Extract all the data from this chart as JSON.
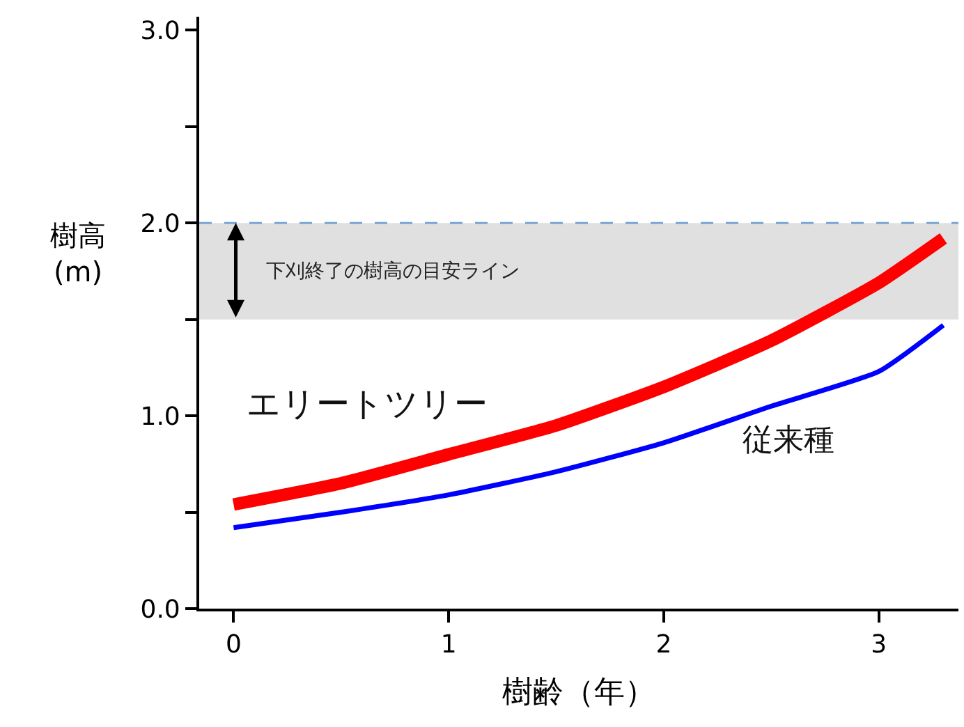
{
  "chart_data": {
    "type": "line",
    "xlabel": "樹齢（年）",
    "ylabel": "樹高\n(m)",
    "x": [
      0,
      0.5,
      1,
      1.5,
      2,
      2.5,
      3,
      3.3
    ],
    "series": [
      {
        "name": "エリートツリー",
        "color": "#ff0000",
        "values": [
          0.54,
          0.65,
          0.8,
          0.95,
          1.15,
          1.39,
          1.69,
          1.92
        ]
      },
      {
        "name": "従来種",
        "color": "#0000ff",
        "values": [
          0.42,
          0.5,
          0.59,
          0.71,
          0.86,
          1.05,
          1.23,
          1.47
        ]
      }
    ],
    "xlim": [
      -0.16,
      3.37
    ],
    "xticks": [
      0,
      1,
      2,
      3
    ],
    "ylim": [
      0,
      3.07
    ],
    "yticks": [
      {
        "value": 0,
        "label": "0.0"
      },
      {
        "value": 0.5,
        "label": null
      },
      {
        "value": 1,
        "label": "1.0"
      },
      {
        "value": 1.5,
        "label": null
      },
      {
        "value": 2,
        "label": "2.0"
      },
      {
        "value": 2.5,
        "label": null
      },
      {
        "value": 3,
        "label": "3.0"
      }
    ],
    "bands": [
      {
        "axis": "y",
        "from": 1.5,
        "to": 2.0,
        "label": "下刈終了の樹高の目安ライン",
        "color": "#e0e0e0"
      }
    ],
    "ref_lines": [
      {
        "axis": "y",
        "value": 2.0,
        "color": "#7aa6d6",
        "line_style": "dashed"
      }
    ],
    "grid": false,
    "legend": false,
    "marker": "none",
    "line_style": "solid"
  }
}
